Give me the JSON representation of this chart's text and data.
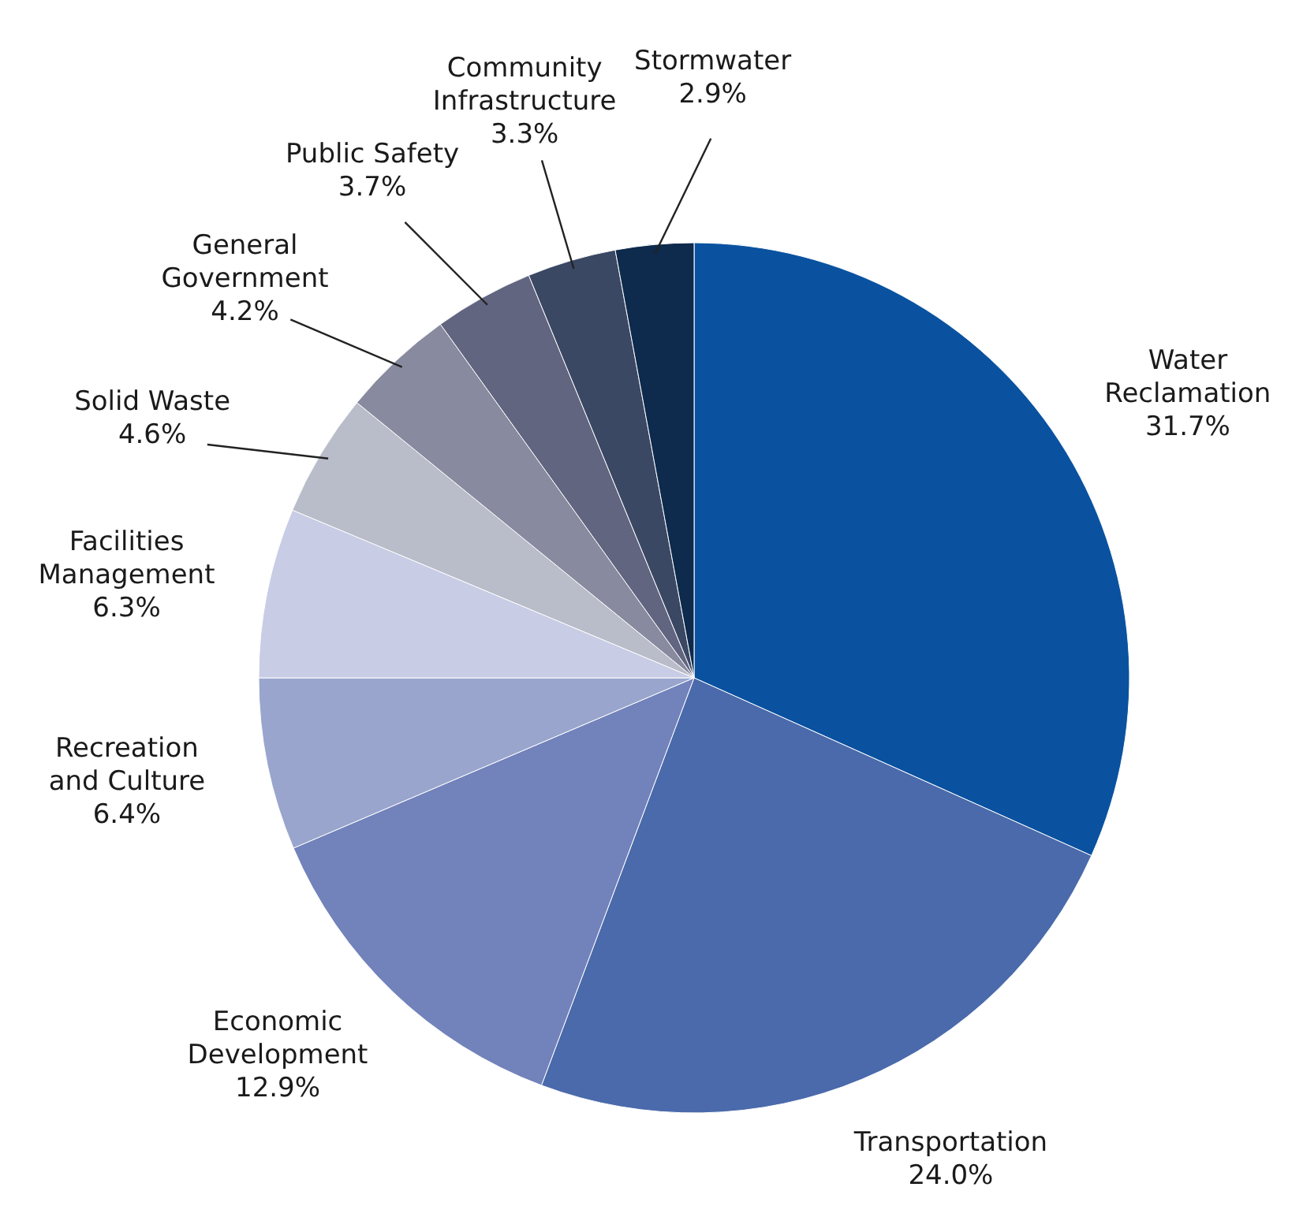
{
  "chart_data": {
    "type": "pie",
    "categories": [
      "Water Reclamation",
      "Transportation",
      "Economic Development",
      "Recreation and Culture",
      "Facilities Management",
      "Solid Waste",
      "General Government",
      "Public Safety",
      "Community Infrastructure",
      "Stormwater"
    ],
    "values": [
      31.7,
      24.0,
      12.9,
      6.4,
      6.3,
      4.6,
      4.2,
      3.7,
      3.3,
      2.9
    ],
    "value_labels": [
      "31.7%",
      "24.0%",
      "12.9%",
      "6.4%",
      "6.3%",
      "4.6%",
      "4.2%",
      "3.7%",
      "3.3%",
      "2.9%"
    ],
    "colors": [
      "#0a52a0",
      "#4a6aab",
      "#7282bb",
      "#99a5cd",
      "#c8cce5",
      "#b9bcc9",
      "#888a9f",
      "#626580",
      "#3a4864",
      "#0e2a4c"
    ]
  }
}
